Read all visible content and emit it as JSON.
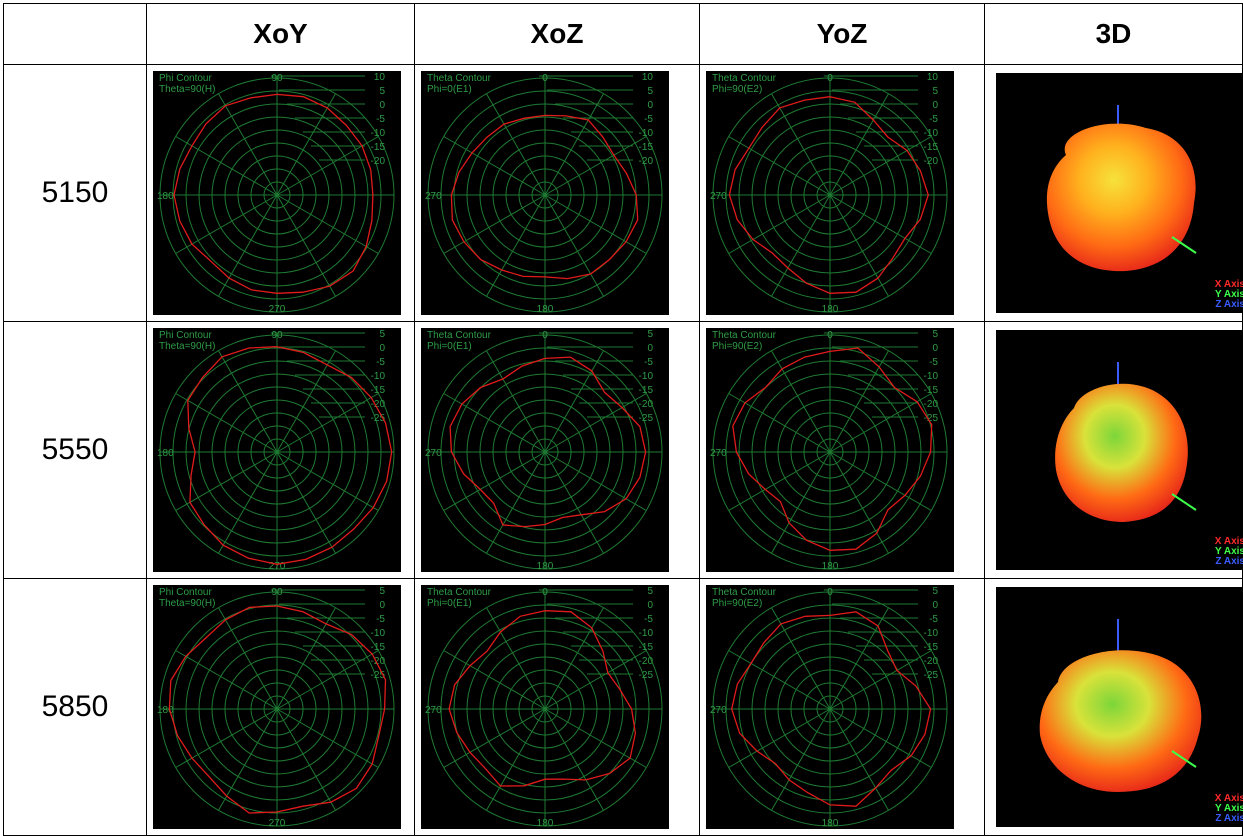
{
  "table": {
    "corner_label": "",
    "column_headers": [
      "XoY",
      "XoZ",
      "YoZ",
      "3D"
    ],
    "rows": [
      {
        "frequency": "5150",
        "scale": [
          "10",
          "5",
          "0",
          "-5",
          "-10",
          "-15",
          "-20"
        ]
      },
      {
        "frequency": "5550",
        "scale": [
          "5",
          "0",
          "-5",
          "-10",
          "-15",
          "-20",
          "-25"
        ]
      },
      {
        "frequency": "5850",
        "scale": [
          "5",
          "0",
          "-5",
          "-10",
          "-15",
          "-20",
          "-25"
        ]
      }
    ]
  },
  "plots": {
    "xoy": {
      "line1": "Phi Contour",
      "line2": "Theta=90(H)",
      "top_label": "90",
      "left_label": "180",
      "bottom_label": "270"
    },
    "xoz": {
      "line1": "Theta Contour",
      "line2": "Phi=0(E1)",
      "top_label": "0",
      "left_label": "270",
      "bottom_label": "180"
    },
    "yoz": {
      "line1": "Theta Contour",
      "line2": "Phi=90(E2)",
      "top_label": "0",
      "left_label": "270",
      "bottom_label": "180"
    }
  },
  "axes_3d": {
    "x_label": "X Axis",
    "y_label": "Y Axis",
    "z_label": "Z Axis"
  },
  "colors": {
    "grid": "#1e7a32",
    "label": "#2e9c46",
    "trace": "#e01b1b",
    "x_axis": "#ff2a2a",
    "y_axis": "#3cff4a",
    "z_axis": "#3a5cff"
  },
  "pattern_shapes": [
    [
      [
        0.86,
        0.87,
        0.86,
        0.84,
        0.84,
        0.83,
        0.82,
        0.84,
        0.88,
        0.92,
        0.9,
        0.86,
        0.84,
        0.84,
        0.82,
        0.8,
        0.84,
        0.86,
        0.88,
        0.86,
        0.84,
        0.86,
        0.88,
        0.86
      ],
      [
        0.68,
        0.7,
        0.74,
        0.7,
        0.68,
        0.72,
        0.78,
        0.82,
        0.8,
        0.78,
        0.78,
        0.74,
        0.7,
        0.72,
        0.74,
        0.78,
        0.8,
        0.82,
        0.8,
        0.76,
        0.72,
        0.7,
        0.7,
        0.68
      ],
      [
        0.84,
        0.82,
        0.74,
        0.7,
        0.76,
        0.8,
        0.84,
        0.8,
        0.74,
        0.76,
        0.82,
        0.86,
        0.84,
        0.78,
        0.72,
        0.7,
        0.76,
        0.82,
        0.86,
        0.84,
        0.8,
        0.82,
        0.86,
        0.84
      ]
    ],
    [
      [
        0.9,
        0.88,
        0.86,
        0.9,
        0.93,
        0.96,
        0.98,
        0.97,
        0.95,
        0.93,
        0.94,
        0.95,
        0.96,
        0.94,
        0.92,
        0.88,
        0.86,
        0.76,
        0.7,
        0.78,
        0.88,
        0.9,
        0.94,
        0.92
      ],
      [
        0.8,
        0.84,
        0.8,
        0.72,
        0.76,
        0.84,
        0.86,
        0.84,
        0.8,
        0.72,
        0.62,
        0.58,
        0.62,
        0.66,
        0.72,
        0.62,
        0.64,
        0.72,
        0.8,
        0.84,
        0.82,
        0.78,
        0.72,
        0.76
      ],
      [
        0.86,
        0.92,
        0.84,
        0.78,
        0.86,
        0.9,
        0.86,
        0.8,
        0.74,
        0.7,
        0.8,
        0.86,
        0.84,
        0.78,
        0.7,
        0.6,
        0.64,
        0.72,
        0.8,
        0.86,
        0.84,
        0.78,
        0.82,
        0.84
      ]
    ],
    [
      [
        0.88,
        0.86,
        0.84,
        0.9,
        0.94,
        0.96,
        0.92,
        0.9,
        0.94,
        0.96,
        0.92,
        0.86,
        0.88,
        0.92,
        0.86,
        0.82,
        0.84,
        0.88,
        0.92,
        0.94,
        0.9,
        0.86,
        0.88,
        0.9
      ],
      [
        0.84,
        0.86,
        0.8,
        0.7,
        0.62,
        0.66,
        0.74,
        0.8,
        0.84,
        0.78,
        0.7,
        0.62,
        0.6,
        0.68,
        0.76,
        0.72,
        0.74,
        0.78,
        0.82,
        0.8,
        0.74,
        0.7,
        0.76,
        0.82
      ],
      [
        0.8,
        0.86,
        0.82,
        0.7,
        0.66,
        0.76,
        0.86,
        0.84,
        0.8,
        0.74,
        0.78,
        0.86,
        0.82,
        0.74,
        0.7,
        0.66,
        0.72,
        0.8,
        0.84,
        0.82,
        0.78,
        0.8,
        0.84,
        0.82
      ]
    ]
  ]
}
